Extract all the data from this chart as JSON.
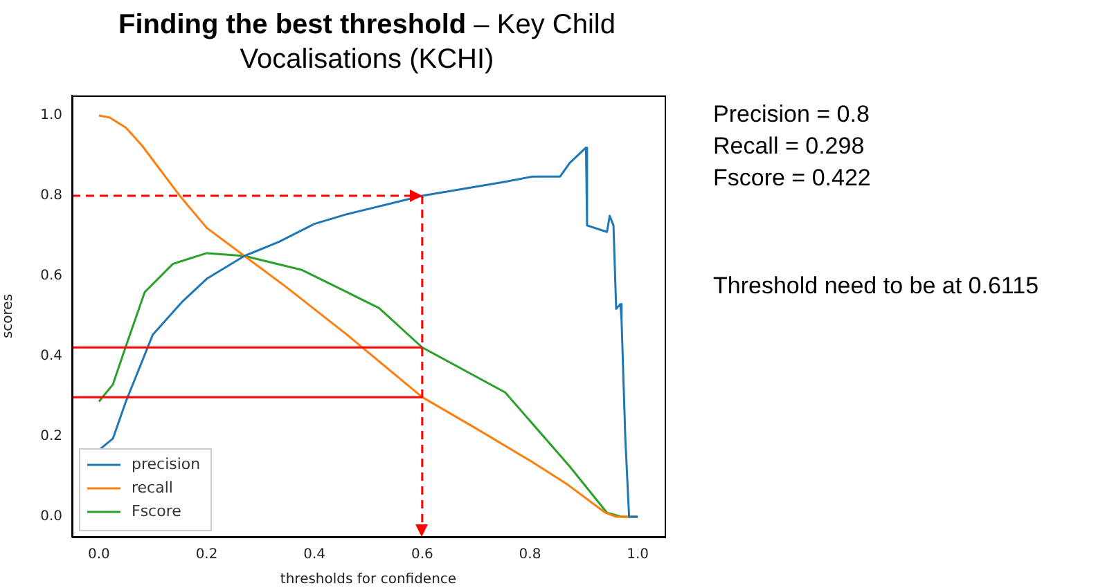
{
  "chart_data": {
    "type": "line",
    "title": "Finding the best threshold – Key Child Vocalisations (KCHI)",
    "xlabel": "thresholds for confidence",
    "ylabel": "scores",
    "series": [
      {
        "name": "precision",
        "color": "#1f77b4",
        "x": [
          0,
          0.026,
          0.05,
          0.1,
          0.154,
          0.2,
          0.27,
          0.334,
          0.4,
          0.46,
          0.6,
          0.754,
          0.805,
          0.856,
          0.874,
          0.904,
          0.906,
          0.943,
          0.948,
          0.955,
          0.96,
          0.968,
          0.97,
          0.977,
          0.984,
          1.0
        ],
        "values": [
          0.166,
          0.195,
          0.287,
          0.454,
          0.535,
          0.593,
          0.65,
          0.685,
          0.73,
          0.754,
          0.8,
          0.835,
          0.848,
          0.848,
          0.882,
          0.92,
          0.726,
          0.71,
          0.75,
          0.726,
          0.518,
          0.53,
          0.49,
          0.195,
          0,
          0
        ]
      },
      {
        "name": "recall",
        "color": "#ff7f0e",
        "x": [
          0,
          0.02,
          0.05,
          0.08,
          0.15,
          0.2,
          0.27,
          0.35,
          0.46,
          0.6,
          0.7,
          0.8,
          0.87,
          0.94,
          0.96,
          1.0
        ],
        "values": [
          1.0,
          0.995,
          0.97,
          0.925,
          0.8,
          0.72,
          0.65,
          0.57,
          0.454,
          0.298,
          0.22,
          0.14,
          0.08,
          0.01,
          0,
          0
        ]
      },
      {
        "name": "Fscore",
        "color": "#2ca02c",
        "x": [
          0,
          0.026,
          0.05,
          0.085,
          0.137,
          0.2,
          0.27,
          0.377,
          0.46,
          0.52,
          0.6,
          0.754,
          0.874,
          0.943,
          0.97,
          1.0
        ],
        "values": [
          0.287,
          0.33,
          0.425,
          0.56,
          0.63,
          0.657,
          0.65,
          0.615,
          0.56,
          0.52,
          0.422,
          0.31,
          0.125,
          0.01,
          0,
          0
        ]
      }
    ],
    "xlim": [
      -0.05,
      1.05
    ],
    "ylim": [
      -0.05,
      1.05
    ],
    "xticks": [
      {
        "value": 0,
        "label": "0.0"
      },
      {
        "value": 0.2,
        "label": "0.2"
      },
      {
        "value": 0.4,
        "label": "0.4"
      },
      {
        "value": 0.6,
        "label": "0.6"
      },
      {
        "value": 0.8,
        "label": "0.8"
      },
      {
        "value": 1.0,
        "label": "1.0"
      }
    ],
    "yticks": [
      {
        "value": 0,
        "label": "0.0"
      },
      {
        "value": 0.2,
        "label": "0.2"
      },
      {
        "value": 0.4,
        "label": "0.4"
      },
      {
        "value": 0.6,
        "label": "0.6"
      },
      {
        "value": 0.8,
        "label": "0.8"
      },
      {
        "value": 1.0,
        "label": "1.0"
      }
    ],
    "ref_lines": [
      {
        "axis": "y",
        "value": 0.8,
        "color": "#ff0000",
        "line_style": "dashed"
      },
      {
        "axis": "x",
        "value": 0.6,
        "color": "#ff0000",
        "line_style": "dashed"
      },
      {
        "axis": "y",
        "value": 0.422,
        "color": "#ff0000",
        "line_style": "solid"
      },
      {
        "axis": "y",
        "value": 0.298,
        "color": "#ff0000",
        "line_style": "solid"
      }
    ],
    "annotations": [
      "Precision = 0.8",
      "Recall = 0.298",
      "Fscore = 0.422",
      "Threshold need to be at 0.6115"
    ],
    "legend": "bottom left",
    "grid": false,
    "marker": "none",
    "line_style": "solid"
  }
}
